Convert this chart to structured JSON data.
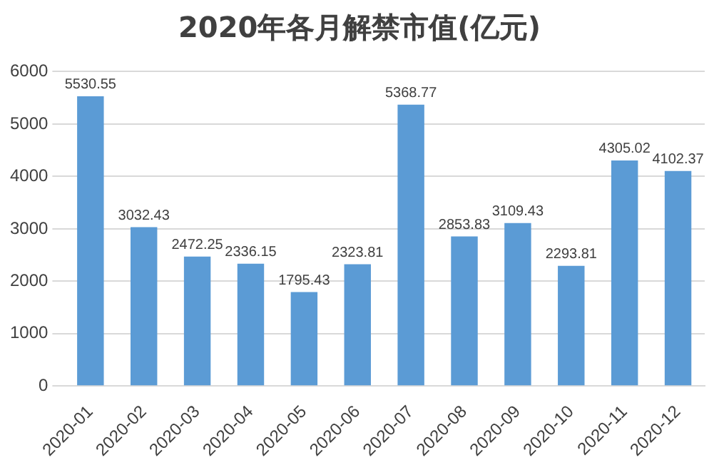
{
  "chart_data": {
    "type": "bar",
    "title": "2020年各月解禁市值(亿元)",
    "categories": [
      "2020-01",
      "2020-02",
      "2020-03",
      "2020-04",
      "2020-05",
      "2020-06",
      "2020-07",
      "2020-08",
      "2020-09",
      "2020-10",
      "2020-11",
      "2020-12"
    ],
    "values": [
      5530.55,
      3032.43,
      2472.25,
      2336.15,
      1795.43,
      2323.81,
      5368.77,
      2853.83,
      3109.43,
      2293.81,
      4305.02,
      4102.37
    ],
    "color": "#5b9bd5",
    "ylim": [
      0,
      6000
    ],
    "yticks": [
      0,
      1000,
      2000,
      3000,
      4000,
      5000,
      6000
    ],
    "grid": "y",
    "data_labels": true,
    "legend": false
  }
}
